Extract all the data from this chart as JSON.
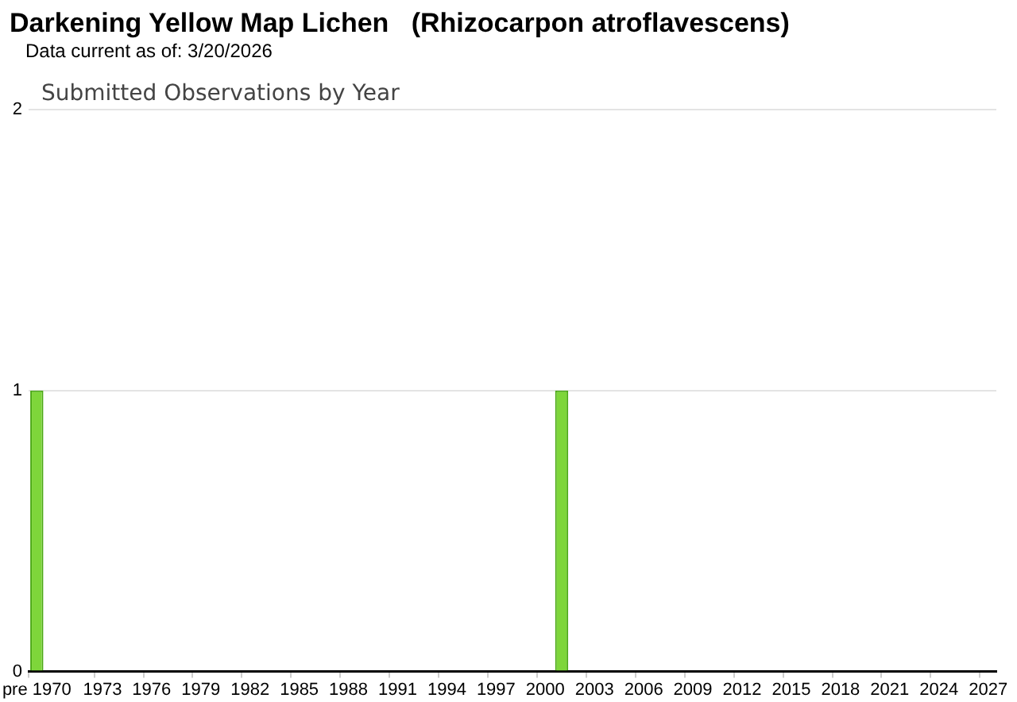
{
  "chart_data": {
    "type": "bar",
    "title": "Darkening Yellow Map Lichen   (Rhizocarpon atroflavescens)",
    "subtitle": "Data current as of: 3/20/2026",
    "annotations": [
      "Submitted Observations by Year"
    ],
    "categories": [
      "pre 1970",
      null,
      null,
      null,
      "1973",
      null,
      null,
      "1976",
      null,
      null,
      "1979",
      null,
      null,
      "1982",
      null,
      null,
      "1985",
      null,
      null,
      "1988",
      null,
      null,
      "1991",
      null,
      null,
      "1994",
      null,
      null,
      "1997",
      null,
      null,
      "2000",
      null,
      null,
      "2003",
      null,
      null,
      "2006",
      null,
      null,
      "2009",
      null,
      null,
      "2012",
      null,
      null,
      "2015",
      null,
      null,
      "2018",
      null,
      null,
      "2021",
      null,
      null,
      "2024",
      null,
      null,
      "2027"
    ],
    "values": [
      1,
      0,
      0,
      0,
      0,
      0,
      0,
      0,
      0,
      0,
      0,
      0,
      0,
      0,
      0,
      0,
      0,
      0,
      0,
      0,
      0,
      0,
      0,
      0,
      0,
      0,
      0,
      0,
      0,
      0,
      0,
      0,
      1,
      0,
      0,
      0,
      0,
      0,
      0,
      0,
      0,
      0,
      0,
      0,
      0,
      0,
      0,
      0,
      0,
      0,
      0,
      0,
      0,
      0,
      0,
      0,
      0,
      0,
      0
    ],
    "color": "#7ed63a",
    "ylim": [
      0,
      2
    ],
    "yticks": [
      0,
      1,
      2
    ],
    "grid": "y",
    "legend": false
  }
}
